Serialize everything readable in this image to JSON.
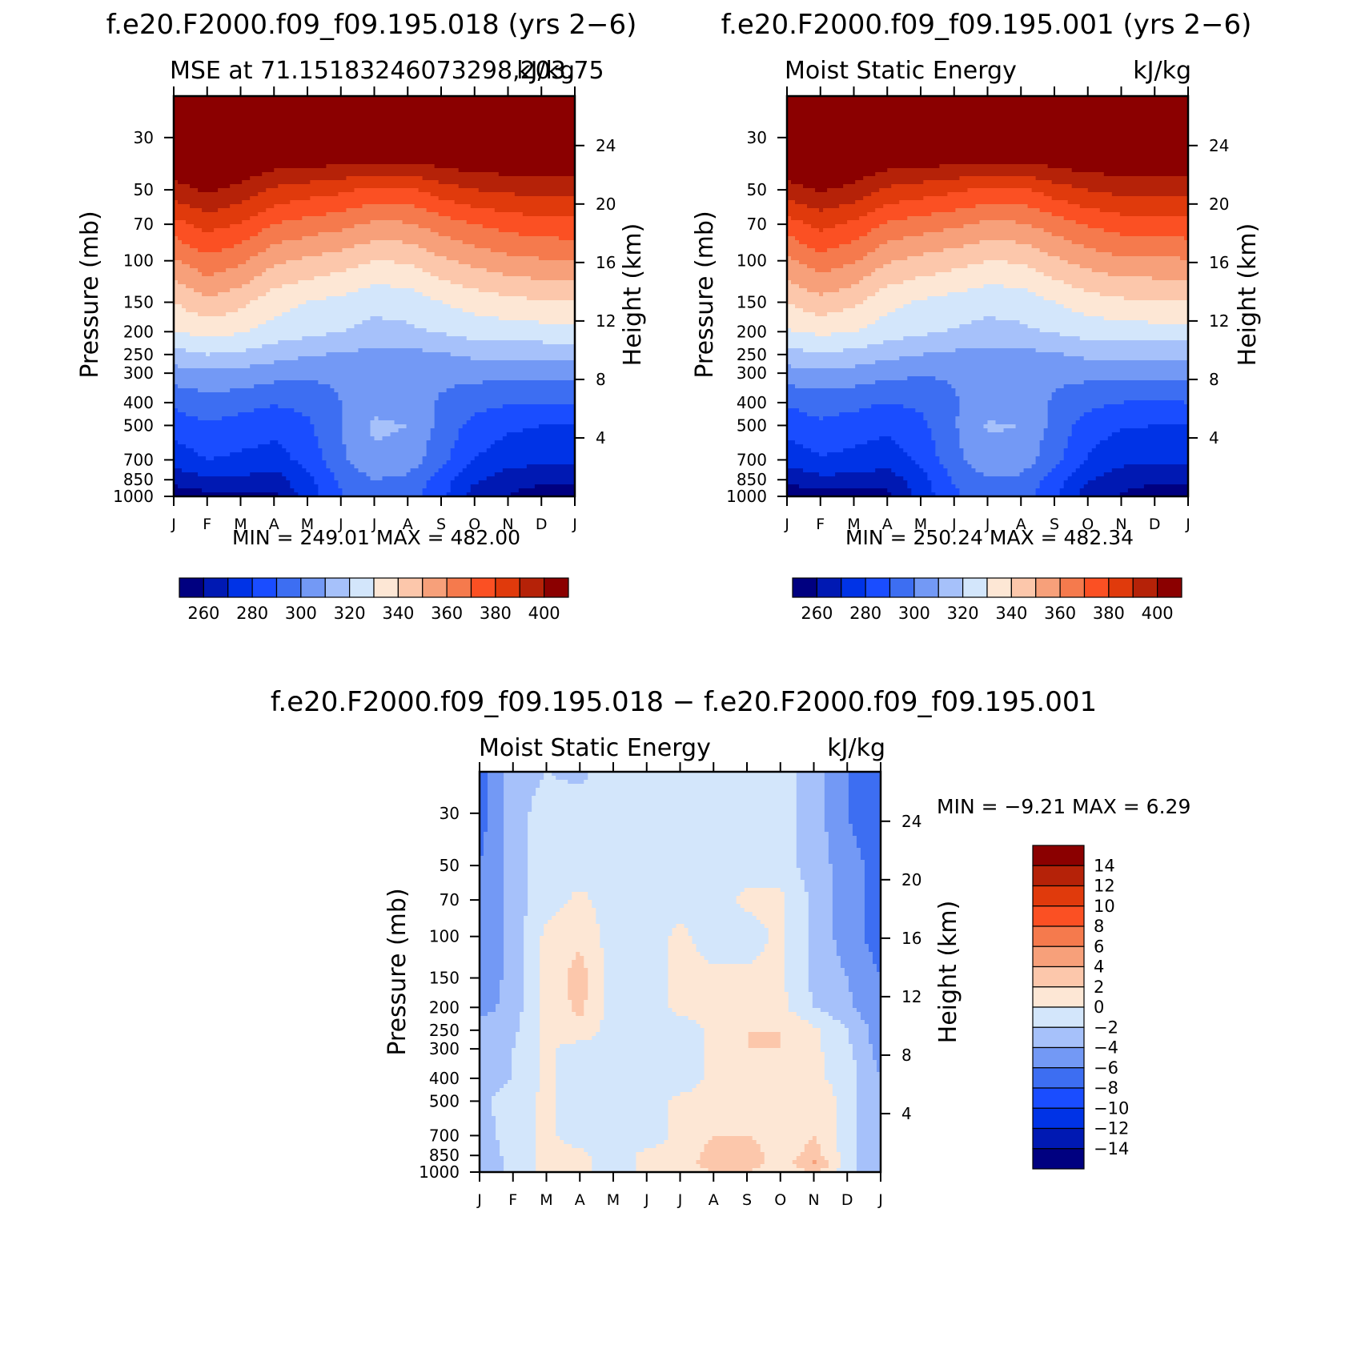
{
  "figure": {
    "panels": [
      {
        "id": "p1",
        "case_title": "f.e20.F2000.f09_f09.195.018 (yrs 2−6)",
        "left_string": "MSE at 71.15183246073298,203.75",
        "right_string": "kJ/kg",
        "ylabel": "Pressure (mb)",
        "y2label": "Height (km)",
        "minmax": "MIN = 249.01 MAX = 482.00"
      },
      {
        "id": "p2",
        "case_title": "f.e20.F2000.f09_f09.195.001 (yrs 2−6)",
        "left_string": "Moist Static Energy",
        "right_string": "kJ/kg",
        "ylabel": "Pressure (mb)",
        "y2label": "Height (km)",
        "minmax": "MIN = 250.24 MAX = 482.34"
      },
      {
        "id": "p3",
        "case_title": "f.e20.F2000.f09_f09.195.018 − f.e20.F2000.f09_f09.195.001",
        "left_string": "Moist Static Energy",
        "right_string": "kJ/kg",
        "ylabel": "Pressure (mb)",
        "y2label": "Height (km)",
        "minmax": "MIN = −9.21 MAX = 6.29"
      }
    ]
  },
  "chart_data": [
    {
      "type": "heatmap",
      "title": "f.e20.F2000.f09_f09.195.018 (yrs 2−6)",
      "subtitle": "MSE at 71.15183246073298,203.75",
      "units": "kJ/kg",
      "xlabel": "",
      "ylabel": "Pressure (mb)",
      "y2label": "Height (km)",
      "x_ticks": [
        "J",
        "F",
        "M",
        "A",
        "M",
        "J",
        "J",
        "A",
        "S",
        "O",
        "N",
        "D",
        "J"
      ],
      "y_ticks": [
        30,
        50,
        70,
        100,
        150,
        200,
        250,
        300,
        400,
        500,
        700,
        850,
        1000
      ],
      "y2_ticks": [
        24,
        20,
        16,
        12,
        8,
        4
      ],
      "ylim": [
        20,
        1000
      ],
      "y_scale": "log",
      "pressure_levels": [
        20,
        30,
        50,
        70,
        100,
        150,
        200,
        250,
        300,
        400,
        500,
        700,
        850,
        925,
        1000
      ],
      "months": [
        "Jan",
        "Feb",
        "Mar",
        "Apr",
        "May",
        "Jun",
        "Jul",
        "Aug",
        "Sep",
        "Oct",
        "Nov",
        "Dec",
        "Jan"
      ],
      "values": [
        [
          420,
          420,
          420,
          420,
          420,
          420,
          420,
          420,
          420,
          420,
          420,
          420,
          420
        ],
        [
          418,
          420,
          420,
          420,
          420,
          420,
          420,
          420,
          420,
          420,
          420,
          420,
          418
        ],
        [
          396,
          402,
          397,
          388,
          385,
          382,
          378,
          378,
          385,
          390,
          392,
          393,
          393
        ],
        [
          376,
          384,
          379,
          370,
          366,
          363,
          358,
          359,
          365,
          370,
          374,
          376,
          377
        ],
        [
          359,
          367,
          362,
          352,
          348,
          345,
          340,
          341,
          348,
          353,
          357,
          359,
          360
        ],
        [
          340,
          348,
          343,
          334,
          330,
          327,
          323,
          324,
          330,
          334,
          337,
          339,
          340
        ],
        [
          330,
          333,
          331,
          326,
          323,
          320,
          317,
          318,
          321,
          324,
          325,
          326,
          327
        ],
        [
          316,
          320,
          318,
          314,
          311,
          309,
          307,
          307,
          309,
          312,
          313,
          313,
          313
        ],
        [
          306,
          308,
          307,
          304,
          302,
          302,
          302,
          302,
          302,
          303,
          303,
          303,
          304
        ],
        [
          292,
          296,
          294,
          291,
          293,
          300,
          306,
          305,
          299,
          294,
          291,
          290,
          290
        ],
        [
          285,
          289,
          286,
          283,
          288,
          300,
          312,
          310,
          297,
          286,
          282,
          280,
          280
        ],
        [
          274,
          280,
          278,
          276,
          283,
          298,
          308,
          306,
          293,
          280,
          274,
          272,
          272
        ],
        [
          264,
          268,
          268,
          265,
          277,
          292,
          300,
          298,
          285,
          272,
          265,
          263,
          263
        ],
        [
          258,
          262,
          262,
          262,
          276,
          290,
          298,
          296,
          284,
          268,
          262,
          258,
          258
        ],
        [
          252,
          256,
          256,
          258,
          275,
          290,
          298,
          296,
          283,
          266,
          260,
          256,
          254
        ]
      ],
      "colorbar": {
        "levels": [
          250,
          260,
          270,
          280,
          290,
          300,
          310,
          320,
          330,
          340,
          350,
          360,
          370,
          380,
          390,
          400
        ],
        "labels": [
          260,
          280,
          300,
          320,
          340,
          360,
          380,
          400
        ],
        "colors": [
          "#000080",
          "#0019b3",
          "#0033e6",
          "#1a4dff",
          "#3d6ef2",
          "#7399f5",
          "#a6c1fa",
          "#d3e6fb",
          "#fde7d5",
          "#fcc7ab",
          "#f7a07a",
          "#f57a4d",
          "#fb5023",
          "#e03a0c",
          "#b52208",
          "#8b0000"
        ]
      }
    },
    {
      "type": "heatmap",
      "title": "f.e20.F2000.f09_f09.195.001 (yrs 2−6)",
      "subtitle": "Moist Static Energy",
      "units": "kJ/kg",
      "xlabel": "",
      "ylabel": "Pressure (mb)",
      "y2label": "Height (km)",
      "x_ticks": [
        "J",
        "F",
        "M",
        "A",
        "M",
        "J",
        "J",
        "A",
        "S",
        "O",
        "N",
        "D",
        "J"
      ],
      "y_ticks": [
        30,
        50,
        70,
        100,
        150,
        200,
        250,
        300,
        400,
        500,
        700,
        850,
        1000
      ],
      "y2_ticks": [
        24,
        20,
        16,
        12,
        8,
        4
      ],
      "ylim": [
        20,
        1000
      ],
      "y_scale": "log",
      "pressure_levels": [
        20,
        30,
        50,
        70,
        100,
        150,
        200,
        250,
        300,
        400,
        500,
        700,
        850,
        925,
        1000
      ],
      "months": [
        "Jan",
        "Feb",
        "Mar",
        "Apr",
        "May",
        "Jun",
        "Jul",
        "Aug",
        "Sep",
        "Oct",
        "Nov",
        "Dec",
        "Jan"
      ],
      "values": [
        [
          420,
          420,
          420,
          420,
          420,
          420,
          420,
          420,
          420,
          420,
          420,
          420,
          420
        ],
        [
          418,
          420,
          420,
          420,
          420,
          420,
          420,
          420,
          420,
          420,
          420,
          420,
          418
        ],
        [
          396,
          401,
          397,
          388,
          385,
          382,
          378,
          378,
          385,
          390,
          393,
          393,
          394
        ],
        [
          375,
          383,
          378,
          369,
          365,
          362,
          358,
          359,
          365,
          371,
          375,
          376,
          377
        ],
        [
          358,
          366,
          361,
          351,
          347,
          344,
          340,
          341,
          348,
          354,
          358,
          358,
          359
        ],
        [
          340,
          347,
          342,
          333,
          329,
          326,
          323,
          324,
          330,
          335,
          338,
          339,
          340
        ],
        [
          329,
          332,
          330,
          325,
          322,
          319,
          317,
          318,
          321,
          324,
          325,
          326,
          326
        ],
        [
          316,
          319,
          317,
          313,
          310,
          308,
          306,
          307,
          309,
          312,
          313,
          313,
          313
        ],
        [
          306,
          307,
          306,
          303,
          301,
          301,
          302,
          302,
          302,
          303,
          303,
          303,
          304
        ],
        [
          291,
          295,
          293,
          290,
          292,
          299,
          305,
          305,
          299,
          293,
          290,
          289,
          290
        ],
        [
          284,
          288,
          285,
          282,
          287,
          299,
          311,
          310,
          297,
          285,
          281,
          280,
          280
        ],
        [
          273,
          279,
          277,
          275,
          282,
          297,
          307,
          306,
          293,
          279,
          273,
          272,
          272
        ],
        [
          263,
          267,
          267,
          264,
          276,
          291,
          299,
          298,
          285,
          271,
          264,
          263,
          263
        ],
        [
          257,
          261,
          261,
          261,
          275,
          289,
          297,
          296,
          284,
          267,
          261,
          258,
          258
        ],
        [
          251,
          255,
          255,
          257,
          274,
          289,
          297,
          296,
          283,
          265,
          259,
          256,
          254
        ]
      ],
      "colorbar": {
        "levels": [
          250,
          260,
          270,
          280,
          290,
          300,
          310,
          320,
          330,
          340,
          350,
          360,
          370,
          380,
          390,
          400
        ],
        "labels": [
          260,
          280,
          300,
          320,
          340,
          360,
          380,
          400
        ],
        "colors": [
          "#000080",
          "#0019b3",
          "#0033e6",
          "#1a4dff",
          "#3d6ef2",
          "#7399f5",
          "#a6c1fa",
          "#d3e6fb",
          "#fde7d5",
          "#fcc7ab",
          "#f7a07a",
          "#f57a4d",
          "#fb5023",
          "#e03a0c",
          "#b52208",
          "#8b0000"
        ]
      }
    },
    {
      "type": "heatmap",
      "title": "f.e20.F2000.f09_f09.195.018 − f.e20.F2000.f09_f09.195.001",
      "subtitle": "Moist Static Energy",
      "units": "kJ/kg",
      "xlabel": "",
      "ylabel": "Pressure (mb)",
      "y2label": "Height (km)",
      "x_ticks": [
        "J",
        "F",
        "M",
        "A",
        "M",
        "J",
        "J",
        "A",
        "S",
        "O",
        "N",
        "D",
        "J"
      ],
      "y_ticks": [
        30,
        50,
        70,
        100,
        150,
        200,
        250,
        300,
        400,
        500,
        700,
        850,
        1000
      ],
      "y2_ticks": [
        24,
        20,
        16,
        12,
        8,
        4
      ],
      "ylim": [
        20,
        1000
      ],
      "y_scale": "log",
      "pressure_levels": [
        20,
        30,
        50,
        70,
        100,
        150,
        200,
        250,
        300,
        400,
        500,
        700,
        850,
        925,
        1000
      ],
      "months": [
        "Jan",
        "Feb",
        "Mar",
        "Apr",
        "May",
        "Jun",
        "Jul",
        "Aug",
        "Sep",
        "Oct",
        "Nov",
        "Dec",
        "Jan"
      ],
      "values": [
        [
          -7,
          -3,
          -2,
          -2.5,
          -1,
          -1,
          -1,
          -1,
          -1,
          -1,
          -3,
          -6,
          -8
        ],
        [
          -7,
          -3,
          -1,
          -1,
          -1,
          -1,
          -1,
          -1,
          -1,
          -1,
          -3,
          -6,
          -8
        ],
        [
          -6,
          -3,
          -1,
          -1,
          -1,
          -1,
          -1,
          -1,
          -1,
          -1,
          -3,
          -5,
          -7
        ],
        [
          -6,
          -3,
          -1,
          0.5,
          -1,
          -1,
          -1,
          -1,
          0.5,
          0.5,
          -2.5,
          -5,
          -7
        ],
        [
          -6,
          -3,
          0.5,
          1.5,
          -1,
          -1,
          0.5,
          -1,
          -1,
          0.5,
          -2.5,
          -5,
          -7
        ],
        [
          -6,
          -3,
          0.5,
          3,
          -1,
          -1,
          0.5,
          0.5,
          0.5,
          0.5,
          -2.5,
          -4,
          -6
        ],
        [
          -5,
          -3,
          0.5,
          2.5,
          -1,
          -1,
          0.5,
          0.5,
          0.5,
          0.5,
          -2,
          -3.5,
          -6
        ],
        [
          -3,
          -2.5,
          0.5,
          1.5,
          -1,
          -1,
          -1,
          0.5,
          2,
          2,
          0.5,
          -2,
          -5
        ],
        [
          -3,
          -2,
          0.5,
          -1,
          -1,
          -1,
          -1,
          0.5,
          2,
          2,
          0.5,
          -1.5,
          -5
        ],
        [
          -3,
          -2,
          0.5,
          -1,
          -1,
          -1,
          -1,
          0.5,
          2,
          0.5,
          0.5,
          -1,
          -4
        ],
        [
          -2.5,
          -1,
          0.5,
          -1,
          -2,
          -1,
          0.5,
          0.5,
          2,
          0.5,
          2,
          -1,
          -4
        ],
        [
          -3,
          -1,
          0.5,
          -1,
          -1,
          -1,
          0.5,
          2,
          2,
          0.5,
          2,
          -1,
          -4
        ],
        [
          -4,
          -1,
          0.5,
          0.5,
          -1,
          0.5,
          0.5,
          3,
          3.5,
          0.5,
          3,
          -1,
          -4
        ],
        [
          -4,
          -1,
          0.5,
          0.5,
          -1,
          0.5,
          0.5,
          3.5,
          3.5,
          0.5,
          4.5,
          -1,
          -4
        ],
        [
          -4,
          -1,
          0.5,
          0.5,
          -1,
          0.5,
          0.5,
          2,
          2,
          0.5,
          2,
          -1,
          -4
        ]
      ],
      "colorbar": {
        "levels": [
          -16,
          -14,
          -12,
          -10,
          -8,
          -6,
          -4,
          -2,
          0,
          2,
          4,
          6,
          8,
          10,
          12,
          14
        ],
        "labels": [
          14,
          12,
          10,
          8,
          6,
          4,
          2,
          0,
          -2,
          -4,
          -6,
          -8,
          -10,
          -12,
          -14
        ],
        "colors": [
          "#000080",
          "#0019b3",
          "#0033e6",
          "#1a4dff",
          "#3d6ef2",
          "#7399f5",
          "#a6c1fa",
          "#d3e6fb",
          "#fde7d5",
          "#fcc7ab",
          "#f7a07a",
          "#f57a4d",
          "#fb5023",
          "#e03a0c",
          "#b52208",
          "#8b0000"
        ]
      }
    }
  ]
}
